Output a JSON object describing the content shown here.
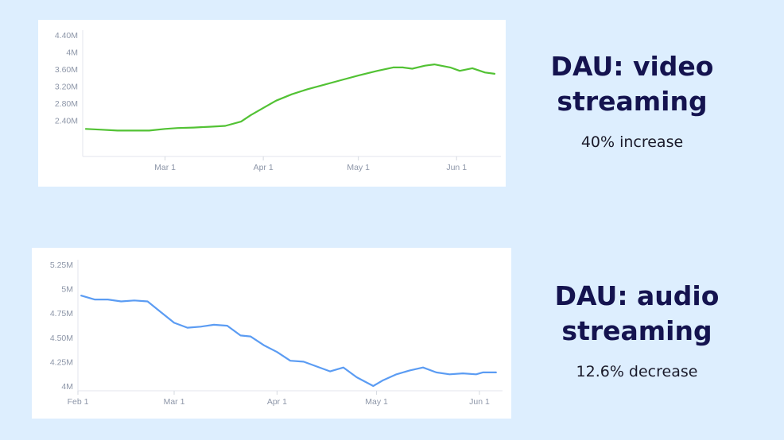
{
  "panels": [
    {
      "title": "DAU: video\nstreaming",
      "subtitle": "40% increase"
    },
    {
      "title": "DAU: audio\nstreaming",
      "subtitle": "12.6% decrease"
    }
  ],
  "chart_data": [
    {
      "type": "line",
      "title": "",
      "xlabel": "",
      "ylabel": "",
      "ylim": [
        2.0,
        4.4
      ],
      "grid": false,
      "y_ticks": [
        2.4,
        2.8,
        3.2,
        3.6,
        4.0,
        4.4
      ],
      "y_tick_labels": [
        "2.40M",
        "2.80M",
        "3.20M",
        "3.60M",
        "4M",
        "4.40M"
      ],
      "x_ticks": [
        "2020-03-01",
        "2020-04-01",
        "2020-05-01",
        "2020-06-01"
      ],
      "x_tick_labels": [
        "Mar 1",
        "Apr 1",
        "May 1",
        "Jun 1"
      ],
      "xlim": [
        "2020-02-04",
        "2020-06-14"
      ],
      "line_color": "#52c234",
      "series": [
        {
          "x": [
            "2020-02-05",
            "2020-02-10",
            "2020-02-15",
            "2020-02-20",
            "2020-02-25",
            "2020-03-01",
            "2020-03-05",
            "2020-03-10",
            "2020-03-15",
            "2020-03-20",
            "2020-03-25",
            "2020-03-28",
            "2020-04-01",
            "2020-04-05",
            "2020-04-10",
            "2020-04-15",
            "2020-04-20",
            "2020-04-25",
            "2020-05-01",
            "2020-05-07",
            "2020-05-12",
            "2020-05-15",
            "2020-05-18",
            "2020-05-22",
            "2020-05-25",
            "2020-05-30",
            "2020-06-02",
            "2020-06-06",
            "2020-06-10",
            "2020-06-13"
          ],
          "y": [
            2.2,
            2.18,
            2.16,
            2.16,
            2.16,
            2.2,
            2.22,
            2.23,
            2.25,
            2.27,
            2.37,
            2.52,
            2.69,
            2.86,
            3.01,
            3.13,
            3.23,
            3.33,
            3.45,
            3.56,
            3.64,
            3.64,
            3.61,
            3.68,
            3.71,
            3.64,
            3.56,
            3.62,
            3.52,
            3.49
          ]
        }
      ]
    },
    {
      "type": "line",
      "title": "",
      "xlabel": "",
      "ylabel": "",
      "ylim": [
        4.0,
        5.25
      ],
      "grid": false,
      "y_ticks": [
        4.0,
        4.25,
        4.5,
        4.75,
        5.0,
        5.25
      ],
      "y_tick_labels": [
        "4M",
        "4.25M",
        "4.50M",
        "4.75M",
        "5M",
        "5.25M"
      ],
      "x_ticks": [
        "2020-02-01",
        "2020-03-01",
        "2020-04-01",
        "2020-05-01",
        "2020-06-01"
      ],
      "x_tick_labels": [
        "Feb 1",
        "Mar 1",
        "Apr 1",
        "May 1",
        "Jun 1"
      ],
      "xlim": [
        "2020-02-01",
        "2020-06-07"
      ],
      "line_color": "#5b9cf3",
      "series": [
        {
          "x": [
            "2020-02-02",
            "2020-02-06",
            "2020-02-10",
            "2020-02-14",
            "2020-02-18",
            "2020-02-22",
            "2020-02-26",
            "2020-03-01",
            "2020-03-05",
            "2020-03-09",
            "2020-03-13",
            "2020-03-17",
            "2020-03-21",
            "2020-03-24",
            "2020-03-28",
            "2020-04-01",
            "2020-04-05",
            "2020-04-09",
            "2020-04-13",
            "2020-04-17",
            "2020-04-21",
            "2020-04-25",
            "2020-04-30",
            "2020-05-03",
            "2020-05-07",
            "2020-05-11",
            "2020-05-15",
            "2020-05-19",
            "2020-05-23",
            "2020-05-27",
            "2020-05-31",
            "2020-06-02",
            "2020-06-06"
          ],
          "y": [
            4.93,
            4.89,
            4.89,
            4.87,
            4.88,
            4.87,
            4.76,
            4.65,
            4.6,
            4.61,
            4.63,
            4.62,
            4.52,
            4.51,
            4.42,
            4.35,
            4.26,
            4.25,
            4.2,
            4.15,
            4.19,
            4.09,
            4.0,
            4.06,
            4.12,
            4.16,
            4.19,
            4.14,
            4.12,
            4.13,
            4.12,
            4.14,
            4.14
          ]
        }
      ]
    }
  ]
}
